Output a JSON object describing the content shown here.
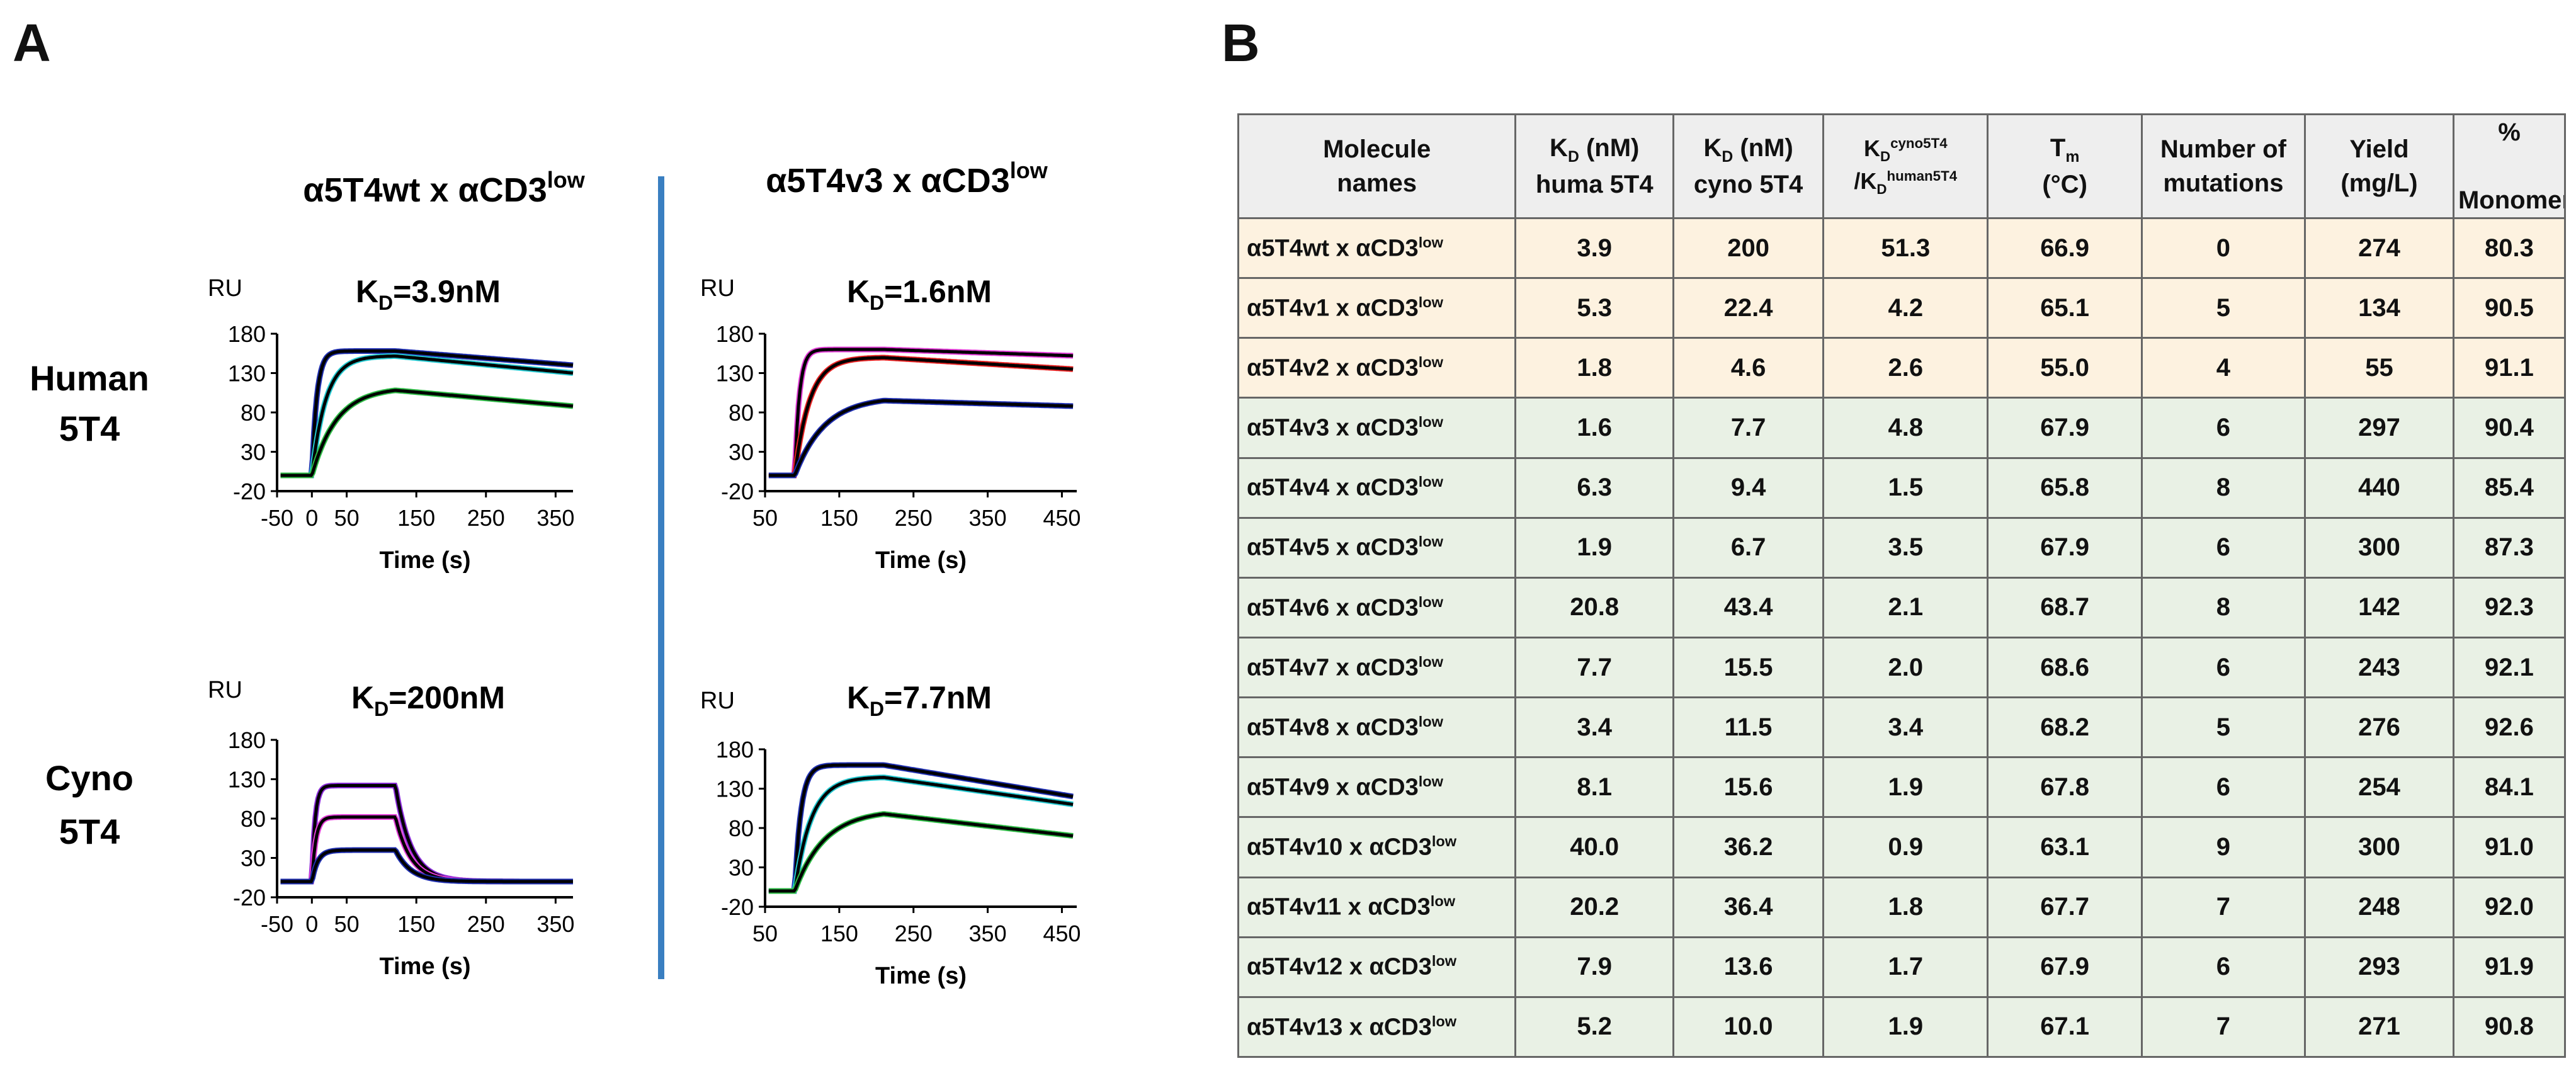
{
  "panel_a": {
    "letter": "A",
    "divider_color": "#3a7fc1",
    "col_titles": [
      {
        "base": "α5T4wt x αCD3",
        "sup": "low"
      },
      {
        "base": "α5T4v3 x αCD3",
        "sup": "low"
      }
    ],
    "row_titles": [
      {
        "line1": "Human",
        "line2": "5T4"
      },
      {
        "line1": "Cyno",
        "line2": "5T4"
      }
    ],
    "chart_data": [
      {
        "id": "wt-human",
        "type": "line",
        "title": "KD=3.9nM",
        "title_base": "K",
        "title_sub": "D",
        "title_rest": "=3.9nM",
        "ylabel": "RU",
        "xlabel": "Time (s)",
        "xlim": [
          -50,
          375
        ],
        "ylim": [
          -20,
          180
        ],
        "xticks": [
          -50,
          0,
          50,
          150,
          250,
          350
        ],
        "yticks": [
          -20,
          30,
          80,
          130,
          180
        ],
        "assoc_end": 120,
        "series": [
          {
            "name": "top",
            "color": "#1f2fb0",
            "t0": 0,
            "t1": 120,
            "tend": 375,
            "plateau": 158,
            "k": 0.14,
            "end": 140
          },
          {
            "name": "upper",
            "color": "#22c7cf",
            "t0": 0,
            "t1": 120,
            "tend": 375,
            "plateau": 152,
            "k": 0.05,
            "end": 130
          },
          {
            "name": "lower",
            "color": "#2dbb45",
            "t0": 0,
            "t1": 120,
            "tend": 375,
            "plateau": 112,
            "k": 0.028,
            "end": 88
          }
        ]
      },
      {
        "id": "v3-human",
        "type": "line",
        "title": "KD=1.6nM",
        "title_base": "K",
        "title_sub": "D",
        "title_rest": "=1.6nM",
        "ylabel": "RU",
        "xlabel": "Time (s)",
        "xlim": [
          50,
          470
        ],
        "ylim": [
          -20,
          180
        ],
        "xticks": [
          50,
          150,
          250,
          350,
          450
        ],
        "yticks": [
          -20,
          30,
          80,
          130,
          180
        ],
        "assoc_end": 210,
        "series": [
          {
            "name": "top",
            "color": "#e13bd6",
            "t0": 90,
            "t1": 210,
            "tend": 465,
            "plateau": 160,
            "k": 0.16,
            "end": 152
          },
          {
            "name": "mid",
            "color": "#e52222",
            "t0": 90,
            "t1": 210,
            "tend": 465,
            "plateau": 150,
            "k": 0.05,
            "end": 135
          },
          {
            "name": "lower",
            "color": "#1f2fb0",
            "t0": 90,
            "t1": 210,
            "tend": 465,
            "plateau": 100,
            "k": 0.025,
            "end": 88
          }
        ]
      },
      {
        "id": "wt-cyno",
        "type": "line",
        "title": "KD=200nM",
        "title_base": "K",
        "title_sub": "D",
        "title_rest": "=200nM",
        "ylabel": "RU",
        "xlabel": "Time (s)",
        "xlim": [
          -50,
          375
        ],
        "ylim": [
          -20,
          180
        ],
        "xticks": [
          -50,
          0,
          50,
          150,
          250,
          350
        ],
        "yticks": [
          -20,
          30,
          80,
          130,
          180
        ],
        "assoc_end": 120,
        "series": [
          {
            "name": "high",
            "color": "#8a2bd8",
            "t0": 0,
            "t1": 120,
            "tend": 375,
            "plateau": 122,
            "k": 0.22,
            "end": 0,
            "koff": 0.045
          },
          {
            "name": "mid",
            "color": "#e13bd6",
            "t0": 0,
            "t1": 120,
            "tend": 375,
            "plateau": 82,
            "k": 0.18,
            "end": 0,
            "koff": 0.045
          },
          {
            "name": "low",
            "color": "#1f2fb0",
            "t0": 0,
            "t1": 120,
            "tend": 375,
            "plateau": 40,
            "k": 0.12,
            "end": 0,
            "koff": 0.045
          }
        ]
      },
      {
        "id": "v3-cyno",
        "type": "line",
        "title": "KD=7.7nM",
        "title_base": "K",
        "title_sub": "D",
        "title_rest": "=7.7nM",
        "ylabel": "RU",
        "xlabel": "Time (s)",
        "xlim": [
          50,
          470
        ],
        "ylim": [
          -20,
          180
        ],
        "xticks": [
          50,
          150,
          250,
          350,
          450
        ],
        "yticks": [
          -20,
          30,
          80,
          130,
          180
        ],
        "assoc_end": 210,
        "series": [
          {
            "name": "top",
            "color": "#1f2fb0",
            "t0": 90,
            "t1": 210,
            "tend": 465,
            "plateau": 160,
            "k": 0.12,
            "end": 120
          },
          {
            "name": "upper",
            "color": "#22c7cf",
            "t0": 90,
            "t1": 210,
            "tend": 465,
            "plateau": 145,
            "k": 0.045,
            "end": 110
          },
          {
            "name": "lower",
            "color": "#2dbb45",
            "t0": 90,
            "t1": 210,
            "tend": 465,
            "plateau": 103,
            "k": 0.025,
            "end": 70
          }
        ]
      }
    ]
  },
  "panel_b": {
    "letter": "B",
    "headers": {
      "molecule": [
        "Molecule",
        "names"
      ],
      "kd_human": {
        "k": "K",
        "sub": "D",
        "rest": " (nM)",
        "line2": "huma 5T4"
      },
      "kd_cyno": {
        "k": "K",
        "sub": "D",
        "rest": " (nM)",
        "line2": "cyno 5T4"
      },
      "ratio": {
        "k1": "K",
        "sub1": "D",
        "sup1": "cyno5T4",
        "slash": "/K",
        "sub2": "D",
        "sup2": "human5T4"
      },
      "tm": {
        "t": "T",
        "sub": "m",
        "line2": "(°C)"
      },
      "mutations": [
        "Number of",
        "mutations"
      ],
      "yield": [
        "Yield",
        "(mg/L)"
      ],
      "monomer": [
        "%",
        "Monomer"
      ]
    },
    "rows": [
      {
        "mol": "α5T4wt x αCD3",
        "sup": "low",
        "kd_h": "3.9",
        "kd_c": "200",
        "ratio": "51.3",
        "tm": "66.9",
        "mut": "0",
        "yield": "274",
        "mono": "80.3",
        "tone": "orange"
      },
      {
        "mol": "α5T4v1 x αCD3",
        "sup": "low",
        "kd_h": "5.3",
        "kd_c": "22.4",
        "ratio": "4.2",
        "tm": "65.1",
        "mut": "5",
        "yield": "134",
        "mono": "90.5",
        "tone": "orange"
      },
      {
        "mol": "α5T4v2 x αCD3",
        "sup": "low",
        "kd_h": "1.8",
        "kd_c": "4.6",
        "ratio": "2.6",
        "tm": "55.0",
        "mut": "4",
        "yield": "55",
        "mono": "91.1",
        "tone": "orange"
      },
      {
        "mol": "α5T4v3 x αCD3",
        "sup": "low",
        "kd_h": "1.6",
        "kd_c": "7.7",
        "ratio": "4.8",
        "tm": "67.9",
        "mut": "6",
        "yield": "297",
        "mono": "90.4",
        "tone": "green"
      },
      {
        "mol": "α5T4v4 x αCD3",
        "sup": "low",
        "kd_h": "6.3",
        "kd_c": "9.4",
        "ratio": "1.5",
        "tm": "65.8",
        "mut": "8",
        "yield": "440",
        "mono": "85.4",
        "tone": "green"
      },
      {
        "mol": "α5T4v5 x αCD3",
        "sup": "low",
        "kd_h": "1.9",
        "kd_c": "6.7",
        "ratio": "3.5",
        "tm": "67.9",
        "mut": "6",
        "yield": "300",
        "mono": "87.3",
        "tone": "green"
      },
      {
        "mol": "α5T4v6 x αCD3",
        "sup": "low",
        "kd_h": "20.8",
        "kd_c": "43.4",
        "ratio": "2.1",
        "tm": "68.7",
        "mut": "8",
        "yield": "142",
        "mono": "92.3",
        "tone": "green"
      },
      {
        "mol": "α5T4v7 x αCD3",
        "sup": "low",
        "kd_h": "7.7",
        "kd_c": "15.5",
        "ratio": "2.0",
        "tm": "68.6",
        "mut": "6",
        "yield": "243",
        "mono": "92.1",
        "tone": "green"
      },
      {
        "mol": "α5T4v8 x αCD3",
        "sup": "low",
        "kd_h": "3.4",
        "kd_c": "11.5",
        "ratio": "3.4",
        "tm": "68.2",
        "mut": "5",
        "yield": "276",
        "mono": "92.6",
        "tone": "green"
      },
      {
        "mol": "α5T4v9 x αCD3",
        "sup": "low",
        "kd_h": "8.1",
        "kd_c": "15.6",
        "ratio": "1.9",
        "tm": "67.8",
        "mut": "6",
        "yield": "254",
        "mono": "84.1",
        "tone": "green"
      },
      {
        "mol": "α5T4v10 x αCD3",
        "sup": "low",
        "kd_h": "40.0",
        "kd_c": "36.2",
        "ratio": "0.9",
        "tm": "63.1",
        "mut": "9",
        "yield": "300",
        "mono": "91.0",
        "tone": "green"
      },
      {
        "mol": "α5T4v11 x αCD3",
        "sup": "low",
        "kd_h": "20.2",
        "kd_c": "36.4",
        "ratio": "1.8",
        "tm": "67.7",
        "mut": "7",
        "yield": "248",
        "mono": "92.0",
        "tone": "green"
      },
      {
        "mol": "α5T4v12 x αCD3",
        "sup": "low",
        "kd_h": "7.9",
        "kd_c": "13.6",
        "ratio": "1.7",
        "tm": "67.9",
        "mut": "6",
        "yield": "293",
        "mono": "91.9",
        "tone": "green"
      },
      {
        "mol": "α5T4v13 x αCD3",
        "sup": "low",
        "kd_h": "5.2",
        "kd_c": "10.0",
        "ratio": "1.9",
        "tm": "67.1",
        "mut": "7",
        "yield": "271",
        "mono": "90.8",
        "tone": "green"
      }
    ]
  }
}
